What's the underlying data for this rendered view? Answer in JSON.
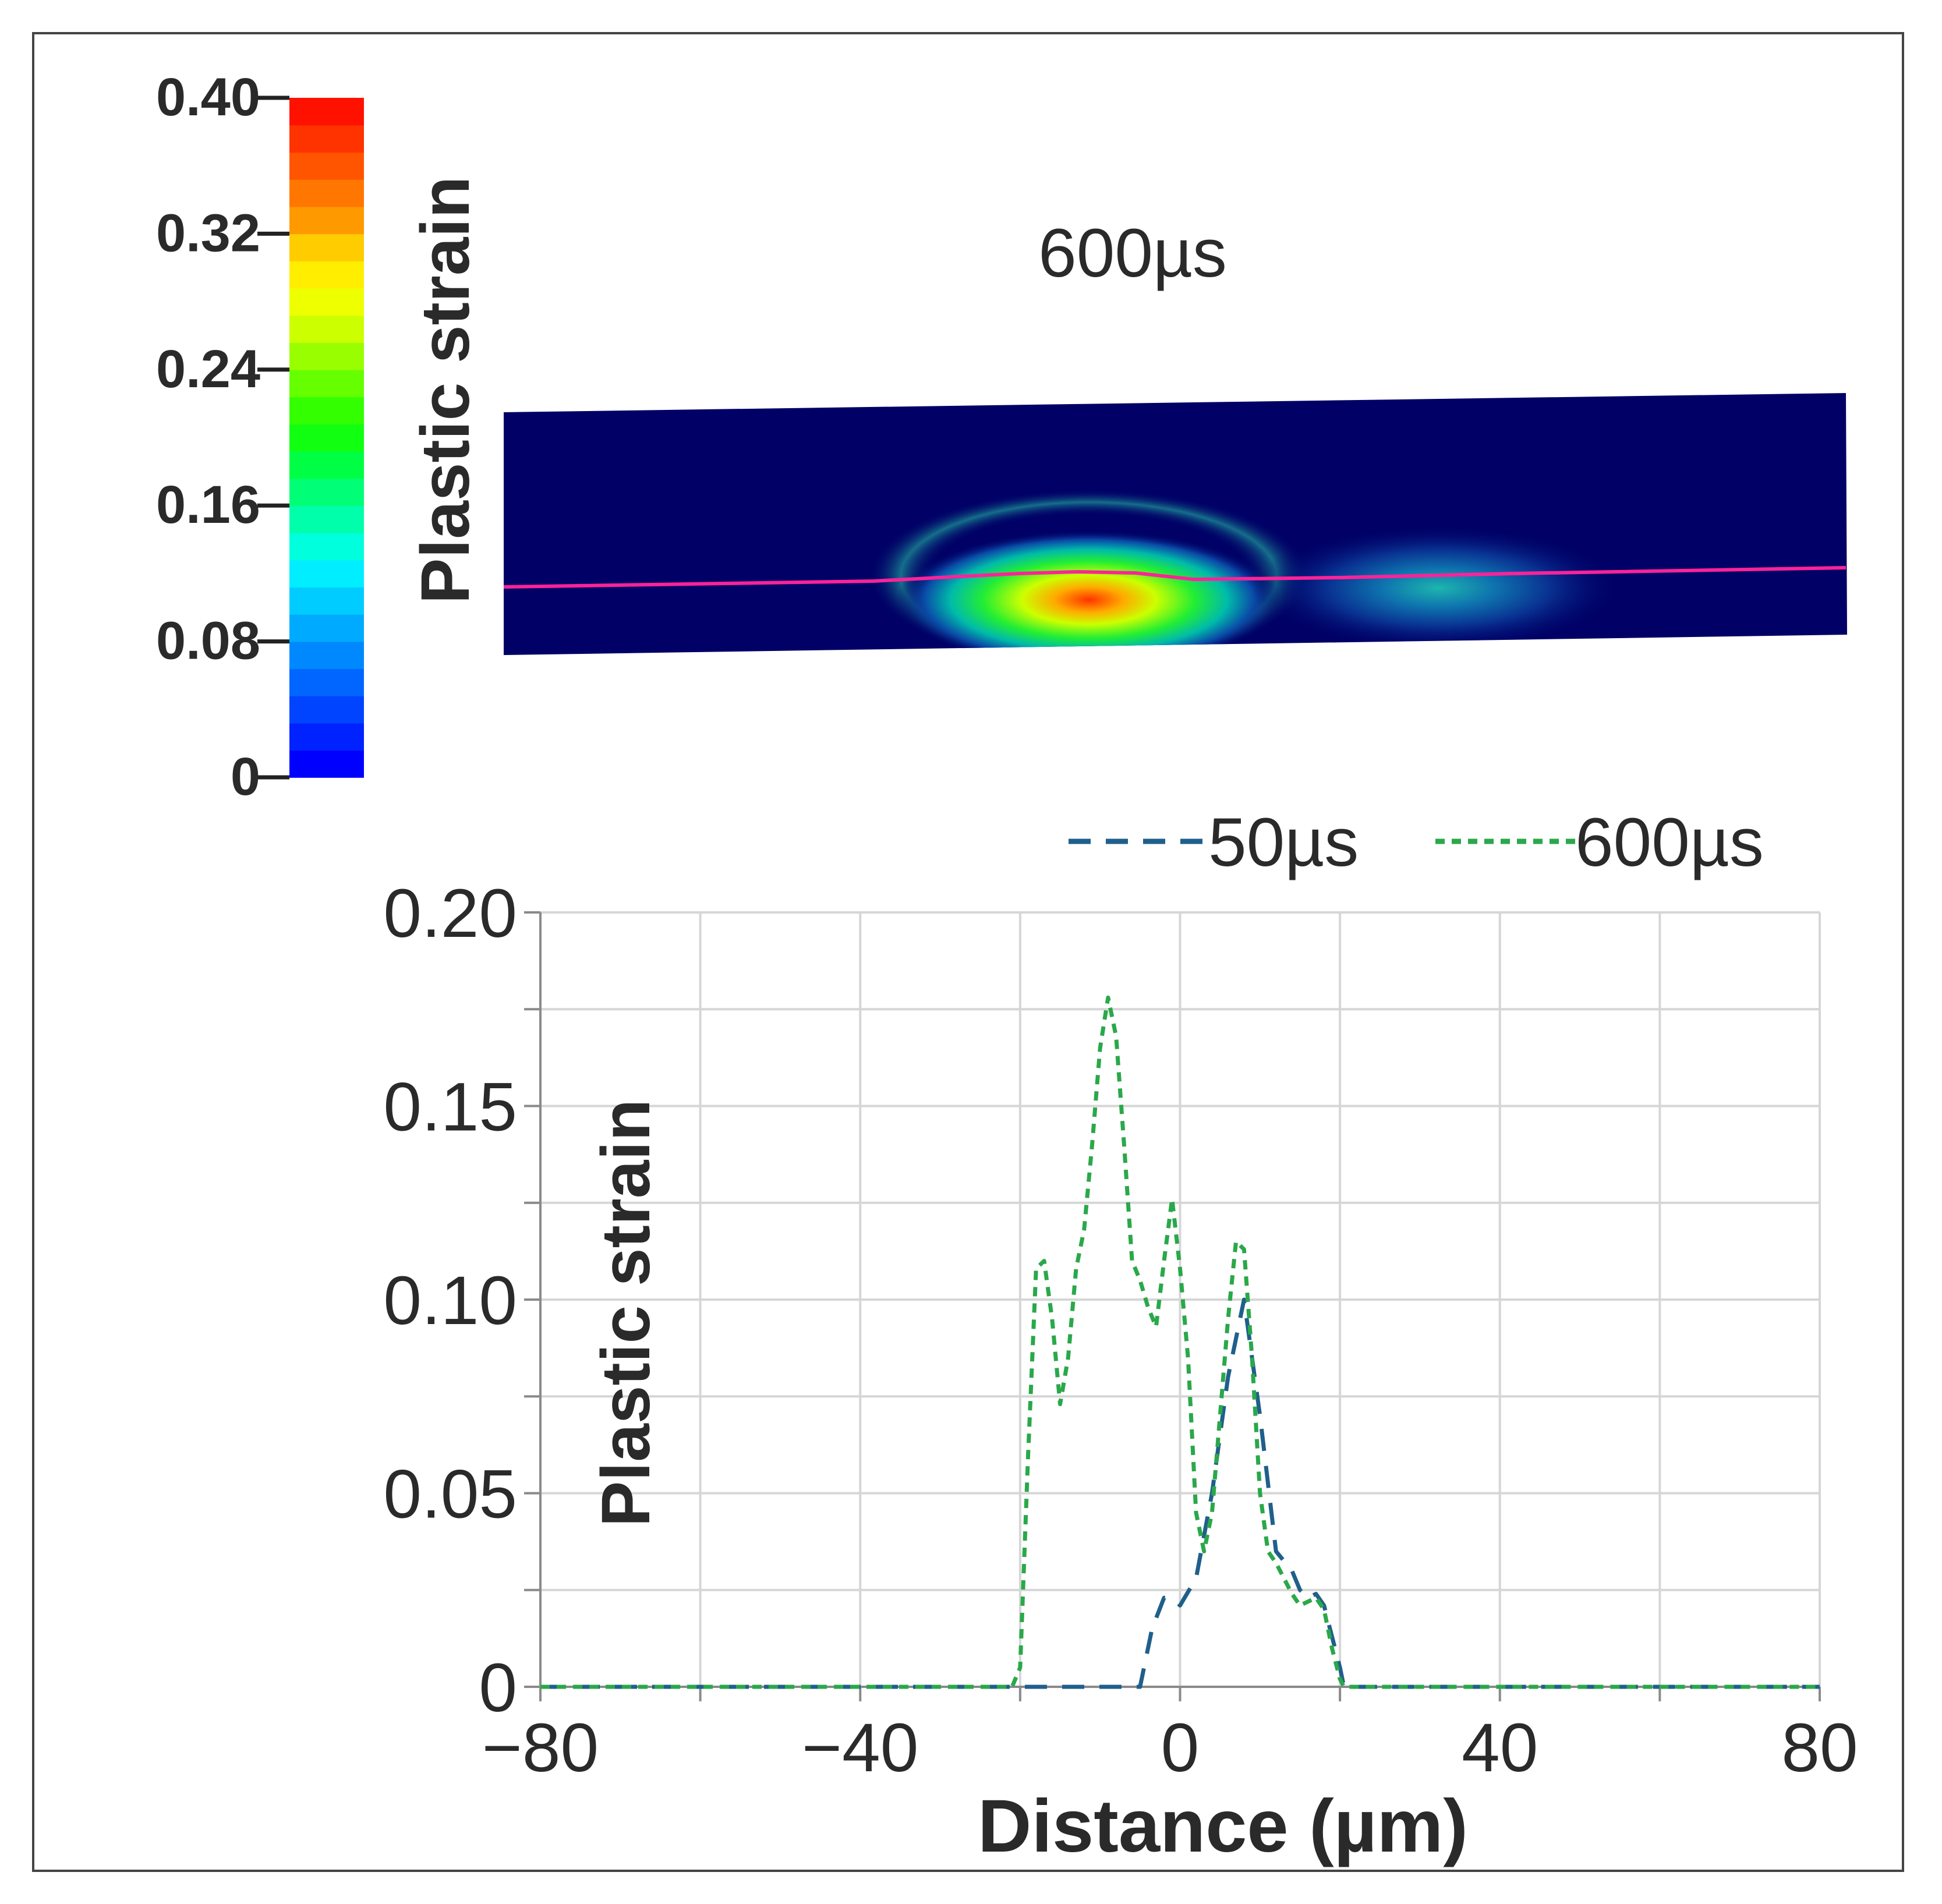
{
  "colorbar": {
    "title": "Plastic strain",
    "tick_labels": [
      "0.40",
      "0.32",
      "0.24",
      "0.16",
      "0.08",
      "0"
    ],
    "tick_values": [
      0.4,
      0.32,
      0.24,
      0.16,
      0.08,
      0
    ],
    "range": [
      0,
      0.4
    ],
    "colors": [
      "#0000ff",
      "#0022ff",
      "#0044ff",
      "#0066ff",
      "#0088ff",
      "#00aaff",
      "#00ccff",
      "#00eeff",
      "#00ffdd",
      "#00ffaa",
      "#00ff77",
      "#00ff44",
      "#11ff11",
      "#33ff00",
      "#66ff00",
      "#99ff00",
      "#ccff00",
      "#eeff00",
      "#ffee00",
      "#ffcc00",
      "#ff9900",
      "#ff7700",
      "#ff5500",
      "#ff3300",
      "#ff1100"
    ]
  },
  "contour_plot": {
    "title": "600µs",
    "background_color": "#000066",
    "line_color": "#ff2299"
  },
  "chart_data": {
    "type": "line",
    "title": "",
    "xlabel": "Distance (µm)",
    "ylabel": "Plastic strain",
    "xlim": [
      -80,
      80
    ],
    "ylim": [
      0,
      0.2
    ],
    "x_ticks": [
      -80,
      -60,
      -40,
      -20,
      0,
      20,
      40,
      60,
      80
    ],
    "x_tick_labels": [
      "−80",
      "",
      "−40",
      "",
      "0",
      "",
      "40",
      "",
      "80"
    ],
    "y_ticks": [
      0,
      0.025,
      0.05,
      0.075,
      0.1,
      0.125,
      0.15,
      0.175,
      0.2
    ],
    "y_tick_labels": [
      "0",
      "",
      "0.05",
      "",
      "0.10",
      "",
      "0.15",
      "",
      "0.20"
    ],
    "grid": true,
    "legend": "top-right",
    "series": [
      {
        "name": "50µs",
        "color": "#1f5f8b",
        "dash": "long",
        "x": [
          -80,
          -20,
          -5,
          -3.5,
          -2,
          -0.5,
          0,
          2,
          4,
          6,
          8,
          10,
          12,
          14,
          15,
          16,
          17,
          18,
          20,
          20.5,
          80
        ],
        "y": [
          0,
          0,
          0,
          0.015,
          0.023,
          0.022,
          0.021,
          0.028,
          0.05,
          0.08,
          0.1,
          0.07,
          0.035,
          0.03,
          0.025,
          0.023,
          0.024,
          0.021,
          0.005,
          0,
          0
        ]
      },
      {
        "name": "600µs",
        "color": "#2aa84a",
        "dash": "short",
        "x": [
          -80,
          -21,
          -20,
          -19,
          -18,
          -17,
          -16,
          -15,
          -14,
          -13,
          -12,
          -11,
          -10,
          -9,
          -8,
          -7,
          -6,
          -5,
          -4,
          -3,
          -2,
          -1,
          0,
          1,
          2,
          3,
          4,
          5,
          6,
          7,
          8,
          9,
          10,
          11,
          12,
          13,
          14,
          15,
          16,
          17,
          18,
          19,
          20,
          20.5,
          80
        ],
        "y": [
          0,
          0,
          0.005,
          0.06,
          0.108,
          0.11,
          0.095,
          0.073,
          0.085,
          0.108,
          0.118,
          0.14,
          0.165,
          0.178,
          0.168,
          0.14,
          0.11,
          0.105,
          0.098,
          0.093,
          0.11,
          0.126,
          0.108,
          0.085,
          0.045,
          0.035,
          0.045,
          0.07,
          0.095,
          0.115,
          0.113,
          0.085,
          0.05,
          0.035,
          0.032,
          0.028,
          0.024,
          0.021,
          0.022,
          0.023,
          0.02,
          0.01,
          0.002,
          0,
          0
        ]
      }
    ]
  }
}
